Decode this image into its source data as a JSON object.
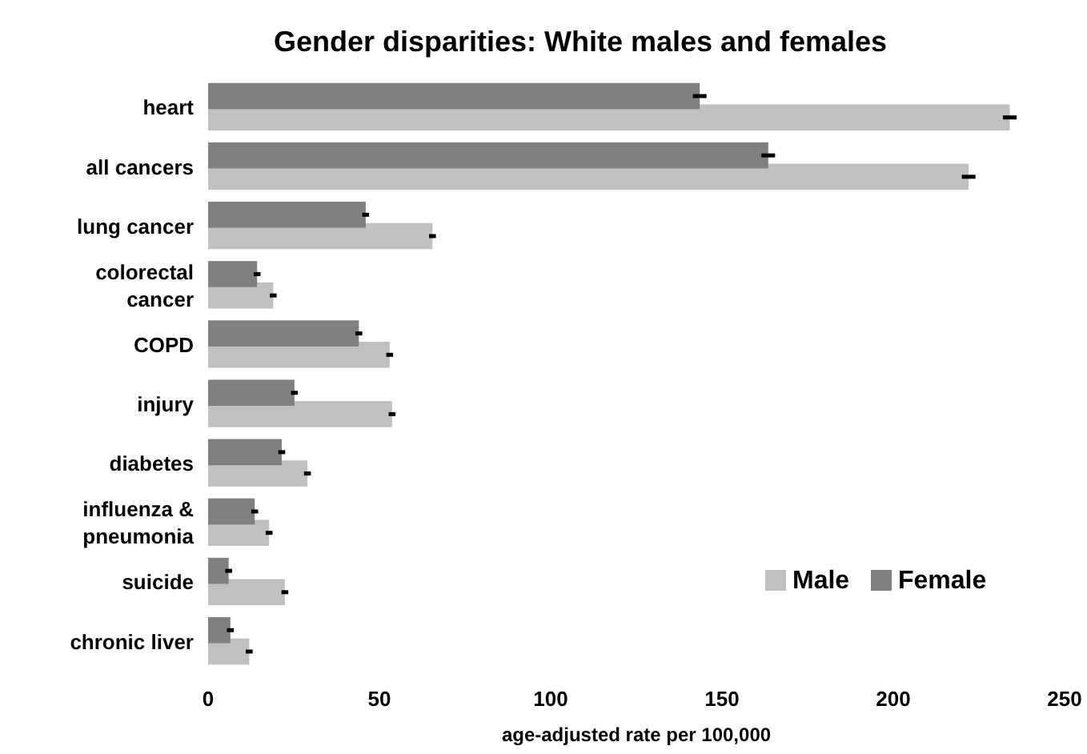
{
  "chart_data": {
    "type": "bar",
    "orientation": "horizontal",
    "title": "Gender disparities: White males and females",
    "xlabel": "age-adjusted rate per 100,000",
    "categories": [
      "heart",
      "all cancers",
      "lung cancer",
      "colorectal cancer",
      "COPD",
      "injury",
      "diabetes",
      "influenza & pneumonia",
      "suicide",
      "chronic liver"
    ],
    "series": [
      {
        "name": "Male",
        "color": "#c0c0c0",
        "values": [
          234,
          222,
          65.5,
          19,
          53,
          53.7,
          29,
          17.8,
          22.4,
          12
        ],
        "errors": [
          2,
          2,
          1,
          1,
          1,
          1,
          1,
          1,
          1,
          1
        ]
      },
      {
        "name": "Female",
        "color": "#808080",
        "values": [
          143.5,
          163.5,
          46,
          14.3,
          44,
          25.2,
          21.5,
          13.6,
          6,
          6.5
        ],
        "errors": [
          2,
          2,
          1,
          1,
          1,
          1,
          1,
          1,
          1,
          1
        ]
      }
    ],
    "xlim": [
      0,
      250
    ],
    "xticks": [
      0,
      50,
      100,
      150,
      200,
      250
    ],
    "grid": false,
    "legend": "bottom right"
  }
}
